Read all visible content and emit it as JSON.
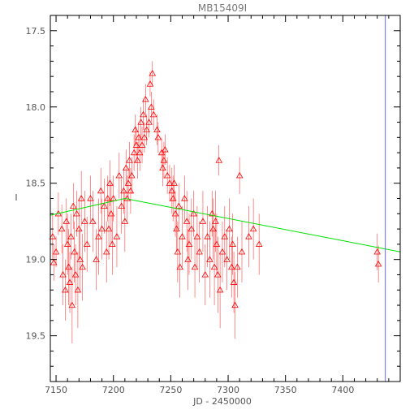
{
  "chart_data": {
    "type": "scatter",
    "title": "MB15409I",
    "xlabel": "JD - 2450000",
    "ylabel": "I",
    "xlim": [
      7145,
      7450
    ],
    "ylim": [
      19.8,
      17.4
    ],
    "y_inverted": true,
    "x_ticks": [
      7150,
      7200,
      7250,
      7300,
      7350,
      7400
    ],
    "y_ticks": [
      17.5,
      18.0,
      18.5,
      19.0,
      19.5
    ],
    "grid": false,
    "legend": "none",
    "colors": {
      "points": "#ff0000",
      "model": "#00e000",
      "frame": "#000000",
      "marker_line": "#6666ff"
    },
    "vertical_marker_x": 7437,
    "model_line": {
      "x": [
        7145,
        7210,
        7450
      ],
      "y": [
        18.71,
        18.6,
        18.95
      ]
    },
    "points": [
      {
        "x": 7147,
        "y": 18.85,
        "e": 0.15
      },
      {
        "x": 7148,
        "y": 19.02,
        "e": 0.12
      },
      {
        "x": 7150,
        "y": 18.95,
        "e": 0.1
      },
      {
        "x": 7152,
        "y": 18.7,
        "e": 0.14
      },
      {
        "x": 7155,
        "y": 18.8,
        "e": 0.16
      },
      {
        "x": 7156,
        "y": 19.1,
        "e": 0.2
      },
      {
        "x": 7158,
        "y": 19.2,
        "e": 0.2
      },
      {
        "x": 7159,
        "y": 18.75,
        "e": 0.15
      },
      {
        "x": 7160,
        "y": 18.9,
        "e": 0.2
      },
      {
        "x": 7161,
        "y": 19.05,
        "e": 0.25
      },
      {
        "x": 7162,
        "y": 19.15,
        "e": 0.2
      },
      {
        "x": 7163,
        "y": 18.85,
        "e": 0.15
      },
      {
        "x": 7164,
        "y": 19.3,
        "e": 0.25
      },
      {
        "x": 7165,
        "y": 18.65,
        "e": 0.15
      },
      {
        "x": 7166,
        "y": 18.95,
        "e": 0.2
      },
      {
        "x": 7167,
        "y": 19.1,
        "e": 0.2
      },
      {
        "x": 7168,
        "y": 18.7,
        "e": 0.15
      },
      {
        "x": 7169,
        "y": 19.2,
        "e": 0.25
      },
      {
        "x": 7170,
        "y": 18.8,
        "e": 0.2
      },
      {
        "x": 7171,
        "y": 19.0,
        "e": 0.2
      },
      {
        "x": 7172,
        "y": 18.6,
        "e": 0.18
      },
      {
        "x": 7173,
        "y": 19.05,
        "e": 0.22
      },
      {
        "x": 7175,
        "y": 18.75,
        "e": 0.2
      },
      {
        "x": 7177,
        "y": 18.9,
        "e": 0.18
      },
      {
        "x": 7180,
        "y": 18.6,
        "e": 0.15
      },
      {
        "x": 7182,
        "y": 18.75,
        "e": 0.2
      },
      {
        "x": 7185,
        "y": 19.0,
        "e": 0.2
      },
      {
        "x": 7187,
        "y": 18.85,
        "e": 0.25
      },
      {
        "x": 7189,
        "y": 18.55,
        "e": 0.15
      },
      {
        "x": 7190,
        "y": 18.8,
        "e": 0.2
      },
      {
        "x": 7192,
        "y": 18.65,
        "e": 0.18
      },
      {
        "x": 7194,
        "y": 18.95,
        "e": 0.2
      },
      {
        "x": 7195,
        "y": 18.6,
        "e": 0.15
      },
      {
        "x": 7196,
        "y": 18.8,
        "e": 0.2
      },
      {
        "x": 7197,
        "y": 18.5,
        "e": 0.15
      },
      {
        "x": 7198,
        "y": 18.7,
        "e": 0.2
      },
      {
        "x": 7199,
        "y": 18.9,
        "e": 0.2
      },
      {
        "x": 7200,
        "y": 18.6,
        "e": 0.15
      },
      {
        "x": 7203,
        "y": 18.85,
        "e": 0.2
      },
      {
        "x": 7205,
        "y": 18.45,
        "e": 0.15
      },
      {
        "x": 7207,
        "y": 18.65,
        "e": 0.18
      },
      {
        "x": 7209,
        "y": 18.55,
        "e": 0.15
      },
      {
        "x": 7210,
        "y": 18.75,
        "e": 0.2
      },
      {
        "x": 7211,
        "y": 18.4,
        "e": 0.12
      },
      {
        "x": 7212,
        "y": 18.6,
        "e": 0.15
      },
      {
        "x": 7213,
        "y": 18.5,
        "e": 0.1
      },
      {
        "x": 7214,
        "y": 18.35,
        "e": 0.12
      },
      {
        "x": 7215,
        "y": 18.55,
        "e": 0.15
      },
      {
        "x": 7216,
        "y": 18.45,
        "e": 0.12
      },
      {
        "x": 7218,
        "y": 18.3,
        "e": 0.12
      },
      {
        "x": 7219,
        "y": 18.15,
        "e": 0.1
      },
      {
        "x": 7220,
        "y": 18.25,
        "e": 0.12
      },
      {
        "x": 7221,
        "y": 18.35,
        "e": 0.12
      },
      {
        "x": 7222,
        "y": 18.2,
        "e": 0.1
      },
      {
        "x": 7223,
        "y": 18.3,
        "e": 0.12
      },
      {
        "x": 7224,
        "y": 18.1,
        "e": 0.1
      },
      {
        "x": 7225,
        "y": 18.25,
        "e": 0.12
      },
      {
        "x": 7226,
        "y": 18.05,
        "e": 0.1
      },
      {
        "x": 7227,
        "y": 18.2,
        "e": 0.1
      },
      {
        "x": 7228,
        "y": 17.95,
        "e": 0.1
      },
      {
        "x": 7229,
        "y": 18.15,
        "e": 0.1
      },
      {
        "x": 7231,
        "y": 18.1,
        "e": 0.1
      },
      {
        "x": 7232,
        "y": 17.85,
        "e": 0.08
      },
      {
        "x": 7233,
        "y": 18.0,
        "e": 0.1
      },
      {
        "x": 7234,
        "y": 17.78,
        "e": 0.08
      },
      {
        "x": 7235,
        "y": 18.05,
        "e": 0.1
      },
      {
        "x": 7238,
        "y": 18.15,
        "e": 0.1
      },
      {
        "x": 7239,
        "y": 18.2,
        "e": 0.1
      },
      {
        "x": 7242,
        "y": 18.3,
        "e": 0.1
      },
      {
        "x": 7243,
        "y": 18.4,
        "e": 0.12
      },
      {
        "x": 7244,
        "y": 18.35,
        "e": 0.12
      },
      {
        "x": 7245,
        "y": 18.28,
        "e": 0.1
      },
      {
        "x": 7247,
        "y": 18.45,
        "e": 0.12
      },
      {
        "x": 7249,
        "y": 18.5,
        "e": 0.12
      },
      {
        "x": 7251,
        "y": 18.55,
        "e": 0.15
      },
      {
        "x": 7252,
        "y": 18.6,
        "e": 0.15
      },
      {
        "x": 7253,
        "y": 18.5,
        "e": 0.12
      },
      {
        "x": 7254,
        "y": 18.7,
        "e": 0.15
      },
      {
        "x": 7255,
        "y": 18.8,
        "e": 0.15
      },
      {
        "x": 7256,
        "y": 18.95,
        "e": 0.2
      },
      {
        "x": 7257,
        "y": 18.65,
        "e": 0.15
      },
      {
        "x": 7258,
        "y": 19.05,
        "e": 0.2
      },
      {
        "x": 7260,
        "y": 18.85,
        "e": 0.2
      },
      {
        "x": 7262,
        "y": 18.6,
        "e": 0.15
      },
      {
        "x": 7264,
        "y": 18.75,
        "e": 0.2
      },
      {
        "x": 7265,
        "y": 19.0,
        "e": 0.2
      },
      {
        "x": 7266,
        "y": 18.9,
        "e": 0.2
      },
      {
        "x": 7268,
        "y": 18.8,
        "e": 0.2
      },
      {
        "x": 7270,
        "y": 18.7,
        "e": 0.15
      },
      {
        "x": 7271,
        "y": 19.05,
        "e": 0.2
      },
      {
        "x": 7273,
        "y": 18.85,
        "e": 0.2
      },
      {
        "x": 7275,
        "y": 18.95,
        "e": 0.2
      },
      {
        "x": 7278,
        "y": 18.75,
        "e": 0.2
      },
      {
        "x": 7280,
        "y": 19.1,
        "e": 0.2
      },
      {
        "x": 7282,
        "y": 18.85,
        "e": 0.2
      },
      {
        "x": 7284,
        "y": 19.0,
        "e": 0.25
      },
      {
        "x": 7286,
        "y": 18.7,
        "e": 0.15
      },
      {
        "x": 7287,
        "y": 18.8,
        "e": 0.2
      },
      {
        "x": 7288,
        "y": 19.05,
        "e": 0.25
      },
      {
        "x": 7289,
        "y": 18.75,
        "e": 0.2
      },
      {
        "x": 7290,
        "y": 18.9,
        "e": 0.2
      },
      {
        "x": 7291,
        "y": 19.1,
        "e": 0.25
      },
      {
        "x": 7292,
        "y": 18.35,
        "e": 0.1
      },
      {
        "x": 7293,
        "y": 19.2,
        "e": 0.25
      },
      {
        "x": 7295,
        "y": 18.95,
        "e": 0.2
      },
      {
        "x": 7297,
        "y": 18.85,
        "e": 0.2
      },
      {
        "x": 7299,
        "y": 19.0,
        "e": 0.2
      },
      {
        "x": 7301,
        "y": 18.8,
        "e": 0.2
      },
      {
        "x": 7303,
        "y": 19.05,
        "e": 0.2
      },
      {
        "x": 7304,
        "y": 18.9,
        "e": 0.2
      },
      {
        "x": 7305,
        "y": 19.15,
        "e": 0.2
      },
      {
        "x": 7306,
        "y": 19.3,
        "e": 0.22
      },
      {
        "x": 7308,
        "y": 19.05,
        "e": 0.2
      },
      {
        "x": 7310,
        "y": 18.45,
        "e": 0.12
      },
      {
        "x": 7312,
        "y": 18.95,
        "e": 0.2
      },
      {
        "x": 7318,
        "y": 18.85,
        "e": 0.2
      },
      {
        "x": 7322,
        "y": 18.8,
        "e": 0.2
      },
      {
        "x": 7327,
        "y": 18.9,
        "e": 0.2
      },
      {
        "x": 7430,
        "y": 18.95,
        "e": 0.12
      },
      {
        "x": 7431,
        "y": 19.03,
        "e": 0.12
      }
    ]
  }
}
